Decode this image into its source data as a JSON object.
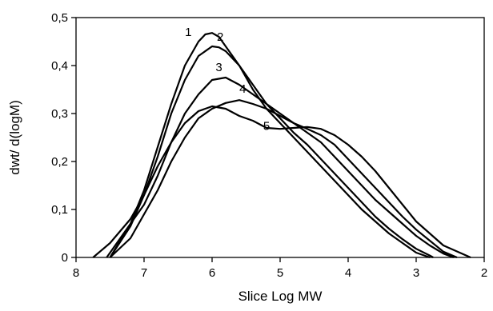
{
  "chart_data": {
    "type": "line",
    "title": "",
    "xlabel": "Slice Log MW",
    "ylabel": "dwt/ d(logM)",
    "xlim": [
      8,
      2
    ],
    "ylim": [
      0,
      0.5
    ],
    "x_reversed": true,
    "grid": false,
    "legend": "none",
    "x_ticks": [
      8,
      7,
      6,
      5,
      4,
      3,
      2
    ],
    "x_tick_labels": [
      "8",
      "7",
      "6",
      "5",
      "4",
      "3",
      "2"
    ],
    "y_ticks": [
      0,
      0.1,
      0.2,
      0.3,
      0.4,
      0.5
    ],
    "y_tick_labels": [
      "0",
      "0,1",
      "0,2",
      "0,3",
      "0,4",
      "0,5"
    ],
    "series": [
      {
        "name": "1",
        "label_at": [
          6.35,
          0.462
        ],
        "x": [
          7.5,
          7.2,
          7.0,
          6.8,
          6.6,
          6.4,
          6.2,
          6.1,
          6.0,
          5.9,
          5.8,
          5.6,
          5.4,
          5.2,
          5.0,
          4.8,
          4.6,
          4.4,
          4.2,
          4.0,
          3.8,
          3.6,
          3.4,
          3.2,
          3.0,
          2.8
        ],
        "y": [
          0.0,
          0.07,
          0.14,
          0.23,
          0.32,
          0.4,
          0.45,
          0.465,
          0.468,
          0.46,
          0.44,
          0.4,
          0.35,
          0.31,
          0.28,
          0.25,
          0.22,
          0.19,
          0.16,
          0.13,
          0.1,
          0.075,
          0.05,
          0.03,
          0.01,
          0.0
        ]
      },
      {
        "name": "2",
        "label_at": [
          5.88,
          0.452
        ],
        "x": [
          7.5,
          7.2,
          7.0,
          6.8,
          6.6,
          6.4,
          6.2,
          6.0,
          5.9,
          5.8,
          5.6,
          5.4,
          5.2,
          5.0,
          4.8,
          4.6,
          4.4,
          4.2,
          4.0,
          3.8,
          3.6,
          3.4,
          3.2,
          3.0,
          2.8,
          2.75
        ],
        "y": [
          0.0,
          0.065,
          0.13,
          0.21,
          0.3,
          0.37,
          0.42,
          0.44,
          0.438,
          0.43,
          0.4,
          0.36,
          0.32,
          0.29,
          0.26,
          0.235,
          0.205,
          0.175,
          0.145,
          0.115,
          0.085,
          0.06,
          0.038,
          0.018,
          0.004,
          0.0
        ]
      },
      {
        "name": "3",
        "label_at": [
          5.9,
          0.388
        ],
        "x": [
          7.55,
          7.3,
          7.0,
          6.8,
          6.6,
          6.4,
          6.2,
          6.0,
          5.8,
          5.6,
          5.4,
          5.2,
          5.0,
          4.8,
          4.6,
          4.4,
          4.2,
          4.0,
          3.8,
          3.6,
          3.4,
          3.2,
          3.0,
          2.8,
          2.6,
          2.45
        ],
        "y": [
          0.0,
          0.05,
          0.11,
          0.17,
          0.24,
          0.3,
          0.34,
          0.37,
          0.375,
          0.36,
          0.34,
          0.32,
          0.3,
          0.28,
          0.26,
          0.24,
          0.21,
          0.18,
          0.15,
          0.12,
          0.095,
          0.07,
          0.045,
          0.025,
          0.008,
          0.0
        ]
      },
      {
        "name": "4",
        "label_at": [
          5.55,
          0.343
        ],
        "x": [
          7.5,
          7.2,
          7.0,
          6.8,
          6.6,
          6.4,
          6.2,
          6.0,
          5.8,
          5.6,
          5.4,
          5.2,
          5.0,
          4.8,
          4.6,
          4.4,
          4.2,
          4.0,
          3.8,
          3.6,
          3.4,
          3.2,
          3.0,
          2.8,
          2.6,
          2.4
        ],
        "y": [
          0.0,
          0.04,
          0.09,
          0.14,
          0.2,
          0.25,
          0.29,
          0.31,
          0.322,
          0.328,
          0.32,
          0.31,
          0.295,
          0.28,
          0.268,
          0.255,
          0.235,
          0.205,
          0.175,
          0.145,
          0.115,
          0.085,
          0.058,
          0.035,
          0.012,
          0.0
        ]
      },
      {
        "name": "5",
        "label_at": [
          5.2,
          0.266
        ],
        "x": [
          7.75,
          7.5,
          7.2,
          7.0,
          6.8,
          6.6,
          6.4,
          6.2,
          6.0,
          5.8,
          5.6,
          5.4,
          5.2,
          5.0,
          4.8,
          4.6,
          4.4,
          4.2,
          4.0,
          3.8,
          3.6,
          3.4,
          3.2,
          3.0,
          2.6,
          2.2
        ],
        "y": [
          0.0,
          0.03,
          0.08,
          0.13,
          0.19,
          0.24,
          0.28,
          0.305,
          0.315,
          0.31,
          0.295,
          0.285,
          0.27,
          0.268,
          0.27,
          0.272,
          0.268,
          0.255,
          0.235,
          0.21,
          0.18,
          0.145,
          0.11,
          0.075,
          0.025,
          0.0
        ]
      }
    ]
  }
}
